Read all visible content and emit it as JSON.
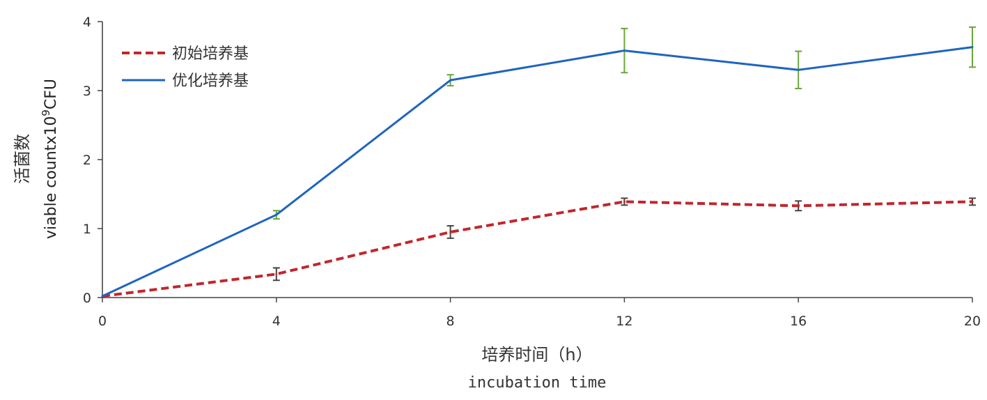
{
  "chart_data": {
    "type": "line",
    "x": [
      0,
      4,
      8,
      12,
      16,
      20
    ],
    "xlim": [
      0,
      20
    ],
    "ylim": [
      0,
      4
    ],
    "xticks": [
      "0",
      "4",
      "8",
      "12",
      "16",
      "20"
    ],
    "yticks": [
      "0",
      "1",
      "2",
      "3",
      "4"
    ],
    "xlabel_cn": "培养时间（h）",
    "xlabel_en": "incubation time",
    "ylabel_cn": "活菌数",
    "ylabel_en_prefix": "viable countx10",
    "ylabel_en_exp": "9",
    "ylabel_en_suffix": "CFU",
    "grid": false,
    "legend_position": "top-left",
    "series": [
      {
        "name": "初始培养基",
        "style": "dashed",
        "color": "#c0272d",
        "error_color": "#444444",
        "values": [
          0.02,
          0.34,
          0.95,
          1.39,
          1.33,
          1.39
        ],
        "errors": [
          0,
          0.09,
          0.09,
          0.05,
          0.07,
          0.05
        ]
      },
      {
        "name": "优化培养基",
        "style": "solid",
        "color": "#1f64c0",
        "error_color": "#6aa63a",
        "values": [
          0.02,
          1.2,
          3.15,
          3.58,
          3.3,
          3.63
        ],
        "errors": [
          0,
          0.06,
          0.08,
          0.32,
          0.27,
          0.29
        ]
      }
    ]
  }
}
